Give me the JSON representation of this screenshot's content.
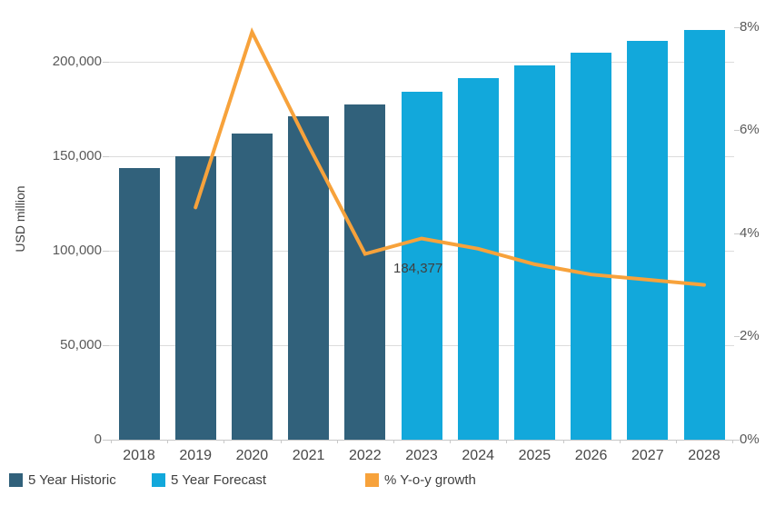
{
  "chart_data": {
    "type": "bar+line",
    "title": "",
    "left_axis": {
      "title": "USD million",
      "ticks": [
        {
          "label": "0",
          "value": 0
        },
        {
          "label": "50,000",
          "value": 50000
        },
        {
          "label": "100,000",
          "value": 100000
        },
        {
          "label": "150,000",
          "value": 150000
        },
        {
          "label": "200,000",
          "value": 200000
        }
      ],
      "range": [
        0,
        226000
      ],
      "grid": true
    },
    "right_axis": {
      "ticks": [
        {
          "label": "0%",
          "value": 0
        },
        {
          "label": "2%",
          "value": 2
        },
        {
          "label": "4%",
          "value": 4
        },
        {
          "label": "6%",
          "value": 6
        },
        {
          "label": "8%",
          "value": 8
        }
      ],
      "range": [
        0,
        8
      ],
      "grid": false
    },
    "categories": [
      "2018",
      "2019",
      "2020",
      "2021",
      "2022",
      "2023",
      "2024",
      "2025",
      "2026",
      "2027",
      "2028"
    ],
    "series": [
      {
        "name": "5 Year Historic",
        "type": "bar",
        "axis": "left",
        "color": "#31617B",
        "values": [
          143600,
          149900,
          161900,
          171100,
          177300,
          null,
          null,
          null,
          null,
          null,
          null
        ]
      },
      {
        "name": "5 Year Forecast",
        "type": "bar",
        "axis": "left",
        "color": "#12A8DB",
        "values": [
          null,
          null,
          null,
          null,
          null,
          184377,
          191300,
          198100,
          204800,
          211100,
          216900
        ]
      },
      {
        "name": "% Y-o-y growth",
        "type": "line",
        "axis": "right",
        "color": "#F7A23B",
        "values": [
          null,
          4.5,
          7.9,
          5.7,
          3.6,
          3.9,
          3.7,
          3.4,
          3.2,
          3.1,
          3.0
        ]
      }
    ],
    "annotation": {
      "text": "184,377",
      "category": "2023",
      "series": "5 Year Forecast"
    },
    "legend_position": "bottom"
  }
}
